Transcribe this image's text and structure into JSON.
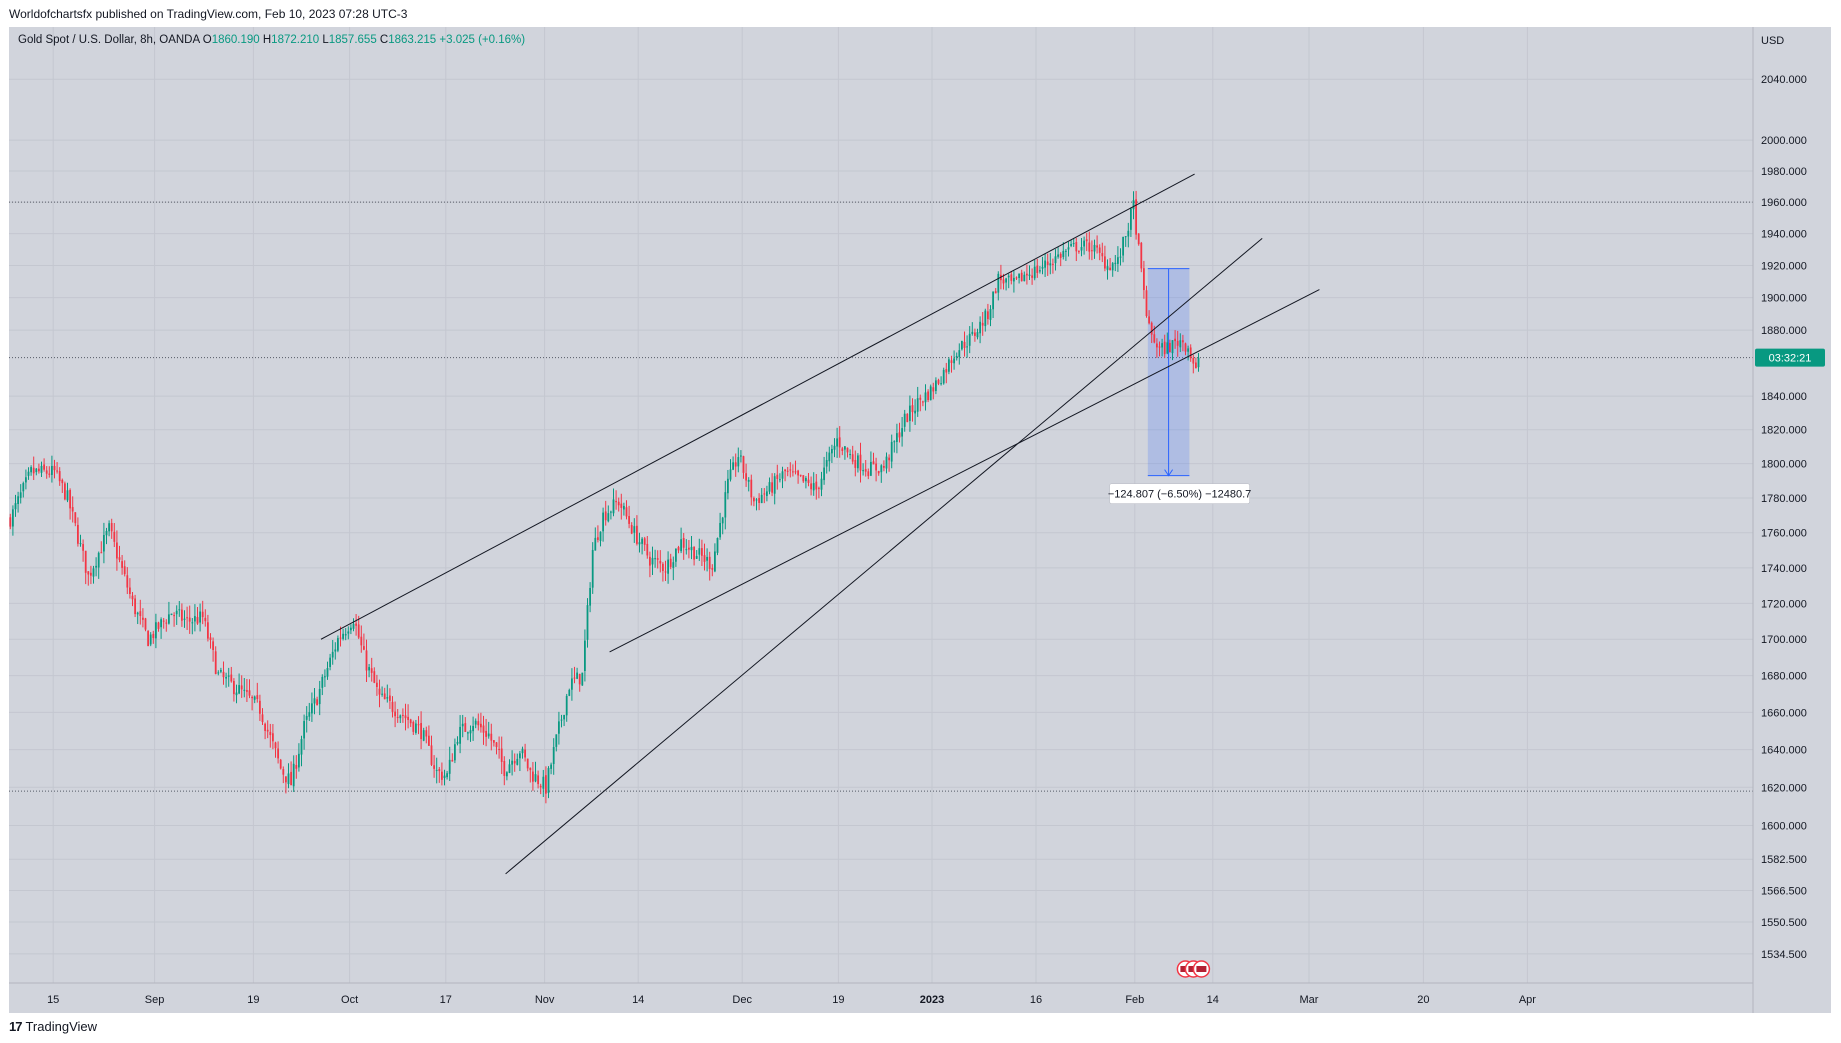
{
  "caption": "Worldofchartsfx published on TradingView.com, Feb 10, 2023 07:28 UTC-3",
  "legend": {
    "symbol": "Gold Spot / U.S. Dollar, 8h, OANDA",
    "o_label": "O",
    "o": "1860.190",
    "h_label": "H",
    "h": "1872.210",
    "l_label": "L",
    "l": "1857.655",
    "c_label": "C",
    "c": "1863.215",
    "change": "+3.025 (+0.16%)"
  },
  "footer": {
    "brand": "TradingView",
    "mark": "17"
  },
  "colors": {
    "background": "#d1d4dc",
    "up": "#089981",
    "down": "#f23645",
    "grid": "#c4c7d0",
    "line": "#131722",
    "measure": "#2962ff"
  },
  "chart_data": {
    "type": "candlestick",
    "title": "Gold Spot / U.S. Dollar, 8h, OANDA",
    "currency": "USD",
    "y_scale": "log",
    "ylim": [
      1520,
      2075
    ],
    "x_ticks": [
      "15",
      "Sep",
      "19",
      "Oct",
      "17",
      "Nov",
      "14",
      "Dec",
      "19",
      "2023",
      "16",
      "Feb",
      "14",
      "Mar",
      "20",
      "Apr"
    ],
    "x_tick_bars": [
      17,
      56,
      94,
      131,
      168,
      206,
      242,
      282,
      319,
      355,
      395,
      433,
      463,
      500,
      544,
      584
    ],
    "y_ticks": [
      "2040.000",
      "2000.000",
      "1980.000",
      "1960.000",
      "1940.000",
      "1920.000",
      "1900.000",
      "1880.000",
      "1840.000",
      "1820.000",
      "1800.000",
      "1780.000",
      "1760.000",
      "1740.000",
      "1720.000",
      "1700.000",
      "1680.000",
      "1660.000",
      "1640.000",
      "1620.000",
      "1600.000",
      "1582.500",
      "1566.500",
      "1550.500",
      "1534.500"
    ],
    "y_tick_values": [
      2040,
      2000,
      1980,
      1960,
      1940,
      1920,
      1900,
      1880,
      1840,
      1820,
      1800,
      1780,
      1760,
      1740,
      1720,
      1700,
      1680,
      1660,
      1640,
      1620,
      1600,
      1582.5,
      1566.5,
      1550.5,
      1534.5
    ],
    "horizontal_levels": [
      1960,
      1618
    ],
    "last_price": 1863.215,
    "countdown": "03:32:21",
    "price_path": [
      [
        0,
        1768
      ],
      [
        8,
        1795
      ],
      [
        17,
        1795
      ],
      [
        22,
        1780
      ],
      [
        30,
        1735
      ],
      [
        38,
        1762
      ],
      [
        47,
        1720
      ],
      [
        53,
        1700
      ],
      [
        62,
        1715
      ],
      [
        68,
        1710
      ],
      [
        74,
        1712
      ],
      [
        80,
        1680
      ],
      [
        88,
        1672
      ],
      [
        96,
        1662
      ],
      [
        104,
        1630
      ],
      [
        108,
        1622
      ],
      [
        113,
        1652
      ],
      [
        118,
        1668
      ],
      [
        126,
        1700
      ],
      [
        132,
        1712
      ],
      [
        136,
        1690
      ],
      [
        142,
        1668
      ],
      [
        150,
        1660
      ],
      [
        158,
        1650
      ],
      [
        164,
        1628
      ],
      [
        168,
        1626
      ],
      [
        172,
        1648
      ],
      [
        178,
        1655
      ],
      [
        184,
        1648
      ],
      [
        190,
        1630
      ],
      [
        196,
        1640
      ],
      [
        200,
        1628
      ],
      [
        206,
        1620
      ],
      [
        210,
        1645
      ],
      [
        215,
        1675
      ],
      [
        220,
        1680
      ],
      [
        224,
        1750
      ],
      [
        228,
        1770
      ],
      [
        234,
        1778
      ],
      [
        240,
        1760
      ],
      [
        246,
        1745
      ],
      [
        252,
        1740
      ],
      [
        258,
        1755
      ],
      [
        264,
        1748
      ],
      [
        270,
        1742
      ],
      [
        276,
        1788
      ],
      [
        280,
        1805
      ],
      [
        286,
        1778
      ],
      [
        292,
        1785
      ],
      [
        298,
        1795
      ],
      [
        304,
        1790
      ],
      [
        310,
        1785
      ],
      [
        318,
        1814
      ],
      [
        324,
        1803
      ],
      [
        330,
        1797
      ],
      [
        336,
        1798
      ],
      [
        344,
        1826
      ],
      [
        350,
        1838
      ],
      [
        354,
        1843
      ],
      [
        358,
        1852
      ],
      [
        364,
        1868
      ],
      [
        370,
        1876
      ],
      [
        376,
        1890
      ],
      [
        380,
        1912
      ],
      [
        386,
        1908
      ],
      [
        390,
        1914
      ],
      [
        396,
        1918
      ],
      [
        404,
        1927
      ],
      [
        410,
        1932
      ],
      [
        416,
        1932
      ],
      [
        422,
        1920
      ],
      [
        426,
        1922
      ],
      [
        430,
        1945
      ],
      [
        432,
        1958
      ],
      [
        435,
        1915
      ],
      [
        438,
        1880
      ],
      [
        442,
        1868
      ],
      [
        446,
        1870
      ],
      [
        450,
        1874
      ],
      [
        453,
        1870
      ],
      [
        456,
        1855
      ],
      [
        457,
        1863
      ]
    ],
    "trendlines": [
      {
        "name": "upper-channel",
        "from": [
          120,
          1700
        ],
        "to": [
          456,
          1978
        ]
      },
      {
        "name": "lower-channel",
        "from": [
          231,
          1693
        ],
        "to": [
          504,
          1905
        ]
      },
      {
        "name": "steep-support",
        "from": [
          191,
          1575
        ],
        "to": [
          482,
          1937
        ]
      }
    ],
    "measure": {
      "from_bar": 438,
      "to_bar": 454,
      "top": 1918,
      "bottom": 1793,
      "label": "−124.807 (−6.50%) −12480.7"
    },
    "event_icons": 3,
    "total_bars": 640
  }
}
